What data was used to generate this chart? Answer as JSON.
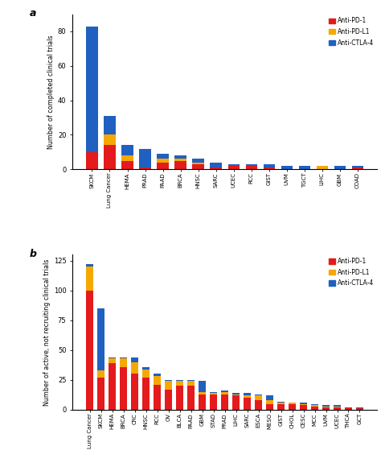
{
  "panel_a": {
    "categories": [
      "SKCM",
      "Lung Cancer",
      "HEMA",
      "PRAD",
      "PAAD",
      "BRCA",
      "HNSC",
      "SARC",
      "UCEC",
      "RCC",
      "GIST",
      "UVM",
      "TGCT",
      "LIHC",
      "GBM",
      "COAD"
    ],
    "anti_pd1": [
      10,
      14,
      5,
      1,
      4,
      5,
      3,
      1,
      2,
      2,
      1,
      0,
      0,
      0,
      0,
      1
    ],
    "anti_pdl1": [
      0,
      6,
      3,
      0,
      2,
      1,
      1,
      0,
      0,
      0,
      0,
      0,
      0,
      2,
      0,
      0
    ],
    "anti_ctla4": [
      73,
      11,
      6,
      11,
      3,
      2,
      2,
      3,
      1,
      1,
      2,
      2,
      2,
      0,
      2,
      1
    ],
    "ylabel": "Number of completed clinical trials",
    "ylim": [
      0,
      90
    ],
    "yticks": [
      0,
      20,
      40,
      60,
      80
    ]
  },
  "panel_b": {
    "categories": [
      "Lung Cancer",
      "SKCM",
      "HEMA",
      "BRCA",
      "CRC",
      "HNSC",
      "RCC",
      "OV",
      "BLCA",
      "PAAD",
      "GBM",
      "STAD",
      "PRAD",
      "LIHC",
      "SARC",
      "ESCA",
      "MESO",
      "GIST",
      "CHOL",
      "CESC",
      "MCC",
      "UVM",
      "UCEC",
      "THCA",
      "GCT"
    ],
    "anti_pd1": [
      100,
      27,
      39,
      36,
      30,
      27,
      21,
      17,
      20,
      20,
      13,
      13,
      13,
      12,
      10,
      8,
      5,
      5,
      5,
      4,
      3,
      2,
      2,
      2,
      1
    ],
    "anti_pdl1": [
      20,
      6,
      4,
      7,
      10,
      7,
      7,
      7,
      4,
      4,
      2,
      1,
      2,
      1,
      2,
      4,
      3,
      1,
      1,
      1,
      1,
      1,
      1,
      0,
      0
    ],
    "anti_ctla4": [
      2,
      52,
      1,
      1,
      4,
      2,
      2,
      1,
      1,
      1,
      9,
      1,
      1,
      1,
      2,
      1,
      4,
      1,
      0,
      1,
      1,
      1,
      1,
      0,
      1
    ],
    "ylabel": "Number of active, not recruiting clinical trials",
    "ylim": [
      0,
      130
    ],
    "yticks": [
      0,
      25,
      50,
      75,
      100,
      125
    ]
  },
  "colors": {
    "anti_pd1": "#e41a1c",
    "anti_pdl1": "#f5a800",
    "anti_ctla4": "#2060c0"
  },
  "legend_labels": [
    "Anti-PD-1",
    "Anti-PD-L1",
    "Anti-CTLA-4"
  ]
}
